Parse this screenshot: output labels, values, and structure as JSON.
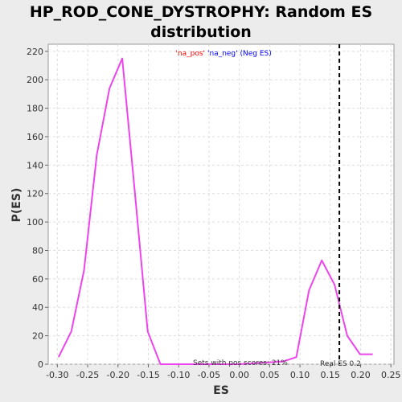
{
  "chart_data": {
    "type": "line",
    "title_line1": "HP_ROD_CONE_DYSTROPHY: Random ES",
    "title_line2": "distribution",
    "xlabel": "ES",
    "ylabel": "P(ES)",
    "xlim": [
      -0.315,
      0.255
    ],
    "ylim": [
      0,
      225
    ],
    "x_ticks": [
      "-0.30",
      "-0.25",
      "-0.20",
      "-0.15",
      "-0.10",
      "-0.05",
      "0.00",
      "0.05",
      "0.10",
      "0.15",
      "0.20",
      "0.25"
    ],
    "y_ticks": [
      "0",
      "20",
      "40",
      "60",
      "80",
      "100",
      "120",
      "140",
      "160",
      "180",
      "200",
      "220"
    ],
    "grid": true,
    "legend": {
      "pos_label": "'na_pos'",
      "neg_label": "'na_neg' (Neg ES)",
      "pos_color": "#ff0000",
      "neg_color": "#0000ff",
      "placement": "top-center"
    },
    "series": [
      {
        "color": "#ee44ee",
        "x": [
          -0.298,
          -0.277,
          -0.256,
          -0.235,
          -0.214,
          -0.193,
          -0.172,
          -0.151,
          -0.13,
          -0.109,
          -0.088,
          -0.067,
          0.0,
          0.073,
          0.094,
          0.115,
          0.136,
          0.157,
          0.178,
          0.199,
          0.22
        ],
        "y": [
          5,
          23,
          66,
          147,
          194,
          215,
          120,
          23,
          0,
          0,
          0,
          0,
          0,
          2,
          5,
          52,
          73,
          56,
          20,
          7,
          7
        ]
      }
    ],
    "real_es_value": 0.165,
    "real_es_label": "Real ES 0.2",
    "pos_scores_label": "Sets with pos scores: 21%"
  }
}
